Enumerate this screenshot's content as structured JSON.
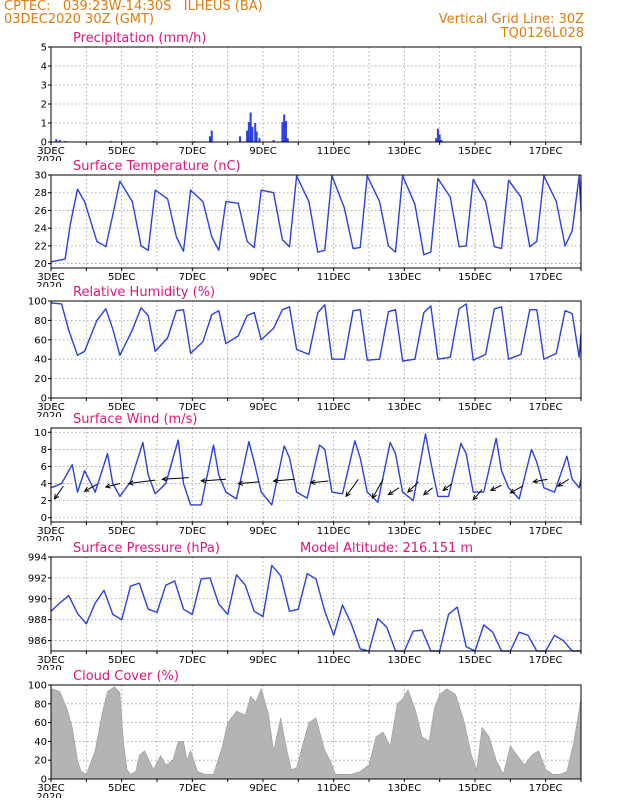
{
  "header": {
    "line1": "CPTEC:   039:23W-14:30S   ILHEUS (BA)",
    "line2": "03DEC2020 30Z (GMT)",
    "right1": "Vertical Grid Line: 30Z",
    "right2": "TQ0126L028"
  },
  "colors": {
    "header": "#e07b10",
    "title": "#e0157a",
    "series": "#2a41e0",
    "cloud": "#b4b4b4"
  },
  "x_axis": {
    "start_day": 3,
    "end_day": 18,
    "tick_days": [
      3,
      5,
      7,
      9,
      11,
      13,
      15,
      17
    ],
    "tick_labels": [
      "3DEC",
      "5DEC",
      "7DEC",
      "9DEC",
      "11DEC",
      "13DEC",
      "15DEC",
      "17DEC"
    ],
    "year_label": "2020"
  },
  "chart_data": [
    {
      "name": "precip",
      "type": "bar",
      "title": "Precipitation (mm/h)",
      "ylim": [
        0,
        5
      ],
      "yticks": [
        0,
        1,
        2,
        3,
        4,
        5
      ],
      "x": [
        3.15,
        3.25,
        3.4,
        4.7,
        5.9,
        7.05,
        7.5,
        7.55,
        8.35,
        8.55,
        8.6,
        8.65,
        8.7,
        8.78,
        8.82,
        8.9,
        9.3,
        9.55,
        9.6,
        9.65,
        9.7,
        12.0,
        13.9,
        13.95,
        14.0,
        14.05,
        16.0
      ],
      "values": [
        0.15,
        0.1,
        0.05,
        0.05,
        0.05,
        0.05,
        0.3,
        0.6,
        0.3,
        0.6,
        1.05,
        1.55,
        0.8,
        1.0,
        0.55,
        0.2,
        0.1,
        1.05,
        1.45,
        1.1,
        0.2,
        0.05,
        0.2,
        0.7,
        0.4,
        0.1,
        0.05
      ]
    },
    {
      "name": "temp",
      "type": "line",
      "title": "Surface Temperature (nC)",
      "ylim": [
        19.5,
        30
      ],
      "yticks": [
        20,
        22,
        24,
        26,
        28,
        30
      ],
      "x": [
        3.0,
        3.4,
        3.55,
        3.75,
        3.95,
        4.3,
        4.55,
        4.75,
        4.95,
        5.3,
        5.55,
        5.75,
        5.95,
        6.3,
        6.55,
        6.75,
        6.95,
        7.3,
        7.55,
        7.75,
        7.95,
        8.3,
        8.55,
        8.75,
        8.95,
        9.3,
        9.55,
        9.75,
        9.95,
        10.3,
        10.55,
        10.75,
        10.95,
        11.3,
        11.55,
        11.75,
        11.95,
        12.3,
        12.55,
        12.75,
        12.95,
        13.3,
        13.55,
        13.75,
        13.95,
        14.3,
        14.55,
        14.75,
        14.95,
        15.3,
        15.55,
        15.75,
        15.95,
        16.3,
        16.55,
        16.75,
        16.95,
        17.3,
        17.55,
        17.75,
        17.95,
        18.0
      ],
      "y": [
        20.2,
        20.5,
        24.5,
        28.4,
        27.0,
        22.5,
        21.9,
        25.5,
        29.3,
        27.0,
        22.0,
        21.5,
        28.3,
        27.3,
        23.0,
        21.4,
        28.3,
        27.0,
        23.0,
        21.5,
        27.0,
        26.8,
        22.5,
        21.8,
        28.3,
        28.0,
        22.7,
        21.9,
        29.9,
        27.0,
        21.3,
        21.5,
        29.9,
        26.3,
        21.7,
        21.8,
        29.9,
        27.0,
        22.0,
        21.3,
        29.9,
        26.7,
        21.0,
        21.3,
        29.6,
        27.5,
        21.9,
        22.0,
        29.5,
        27.0,
        21.9,
        21.7,
        29.4,
        27.5,
        21.9,
        22.5,
        29.9,
        27.0,
        22.0,
        23.7,
        29.9,
        26.0
      ]
    },
    {
      "name": "rh",
      "type": "line",
      "title": "Relative Humidity (%)",
      "ylim": [
        0,
        100
      ],
      "yticks": [
        0,
        20,
        40,
        60,
        80,
        100
      ],
      "x": [
        3.0,
        3.3,
        3.5,
        3.75,
        3.95,
        4.3,
        4.55,
        4.75,
        4.95,
        5.3,
        5.55,
        5.75,
        5.95,
        6.3,
        6.55,
        6.75,
        6.95,
        7.3,
        7.55,
        7.75,
        7.95,
        8.3,
        8.55,
        8.75,
        8.95,
        9.3,
        9.55,
        9.75,
        9.95,
        10.3,
        10.55,
        10.75,
        10.95,
        11.3,
        11.55,
        11.75,
        11.95,
        12.3,
        12.55,
        12.75,
        12.95,
        13.3,
        13.55,
        13.75,
        13.95,
        14.3,
        14.55,
        14.75,
        14.95,
        15.3,
        15.55,
        15.75,
        15.95,
        16.3,
        16.55,
        16.75,
        16.95,
        17.3,
        17.55,
        17.75,
        17.95,
        18.0
      ],
      "y": [
        98,
        97,
        70,
        44,
        48,
        80,
        92,
        71,
        44,
        70,
        93,
        85,
        48,
        62,
        90,
        91,
        46,
        58,
        86,
        90,
        56,
        64,
        85,
        88,
        60,
        72,
        91,
        94,
        50,
        45,
        88,
        96,
        40,
        40,
        90,
        91,
        39,
        40,
        89,
        91,
        38,
        40,
        88,
        95,
        40,
        42,
        92,
        97,
        39,
        45,
        92,
        94,
        40,
        45,
        91,
        91,
        40,
        46,
        90,
        87,
        42,
        66
      ]
    },
    {
      "name": "wind",
      "type": "line",
      "title": "Surface Wind (m/s)",
      "ylim": [
        -0.5,
        10.5
      ],
      "yticks": [
        0,
        2,
        4,
        6,
        8,
        10
      ],
      "x": [
        3.0,
        3.3,
        3.6,
        3.75,
        3.95,
        4.25,
        4.6,
        4.75,
        4.95,
        5.25,
        5.6,
        5.75,
        5.95,
        6.25,
        6.6,
        6.75,
        6.95,
        7.25,
        7.6,
        7.75,
        7.95,
        8.25,
        8.6,
        8.75,
        8.95,
        9.25,
        9.6,
        9.75,
        9.95,
        10.25,
        10.6,
        10.75,
        10.95,
        11.25,
        11.6,
        11.75,
        11.95,
        12.25,
        12.6,
        12.75,
        12.95,
        13.25,
        13.6,
        13.75,
        13.95,
        14.25,
        14.6,
        14.75,
        14.95,
        15.25,
        15.6,
        15.75,
        15.95,
        16.25,
        16.6,
        16.75,
        16.95,
        17.25,
        17.6,
        17.75,
        17.95,
        18.0
      ],
      "y": [
        3.5,
        4.0,
        6.2,
        3.0,
        5.5,
        3.0,
        7.5,
        4.0,
        2.5,
        4.2,
        8.8,
        5.0,
        2.8,
        4.0,
        9.1,
        4.0,
        1.5,
        1.5,
        8.5,
        5.0,
        3.0,
        2.2,
        8.9,
        6.5,
        3.0,
        1.5,
        8.4,
        7.0,
        3.0,
        2.3,
        8.5,
        8.0,
        3.0,
        2.8,
        9.0,
        7.0,
        3.0,
        1.8,
        8.8,
        7.5,
        3.0,
        2.0,
        9.8,
        6.5,
        2.5,
        2.5,
        8.7,
        7.5,
        3.0,
        3.0,
        9.3,
        5.5,
        3.5,
        2.2,
        8.0,
        6.5,
        3.5,
        3.0,
        7.2,
        4.5,
        3.5,
        4.5
      ],
      "vectors_x": [
        3.35,
        4.3,
        4.95,
        5.95,
        6.9,
        7.95,
        8.9,
        9.9,
        10.85,
        11.7,
        12.4,
        12.85,
        13.4,
        13.8,
        14.35,
        15.2,
        15.75,
        16.35,
        17.05,
        17.65
      ],
      "vectors_y": [
        3.7,
        3.9,
        4.0,
        4.4,
        4.7,
        4.5,
        4.2,
        4.5,
        4.3,
        4.5,
        4.5,
        3.5,
        4.2,
        3.5,
        4.0,
        3.3,
        3.8,
        3.7,
        4.5,
        4.5
      ],
      "vectors_dx": [
        -0.25,
        -0.35,
        -0.4,
        -0.75,
        -0.75,
        -0.7,
        -0.6,
        -0.6,
        -0.5,
        -0.35,
        -0.3,
        -0.3,
        -0.3,
        -0.25,
        -0.25,
        -0.25,
        -0.3,
        -0.35,
        -0.4,
        -0.3
      ],
      "vectors_dy": [
        -1.5,
        -0.8,
        -0.4,
        -0.4,
        -0.2,
        -0.2,
        -0.2,
        -0.2,
        -0.2,
        -2.0,
        -2.2,
        -0.8,
        -1.2,
        -0.8,
        -0.8,
        -1.2,
        -0.6,
        -0.8,
        -0.3,
        -0.8
      ]
    },
    {
      "name": "pres",
      "type": "line",
      "title": "Surface Pressure (hPa)",
      "subtitle": "Model Altitude: 216.151 m",
      "ylim": [
        985,
        994
      ],
      "yticks": [
        986,
        988,
        990,
        992,
        994
      ],
      "x": [
        3.0,
        3.25,
        3.5,
        3.75,
        4.0,
        4.25,
        4.5,
        4.75,
        5.0,
        5.25,
        5.5,
        5.75,
        6.0,
        6.25,
        6.5,
        6.75,
        7.0,
        7.25,
        7.5,
        7.75,
        8.0,
        8.25,
        8.5,
        8.75,
        9.0,
        9.25,
        9.5,
        9.75,
        10.0,
        10.25,
        10.5,
        10.75,
        11.0,
        11.25,
        11.5,
        11.75,
        12.0,
        12.25,
        12.5,
        12.75,
        13.0,
        13.25,
        13.5,
        13.75,
        14.0,
        14.25,
        14.5,
        14.75,
        15.0,
        15.25,
        15.5,
        15.75,
        16.0,
        16.25,
        16.5,
        16.75,
        17.0,
        17.25,
        17.5,
        17.75,
        18.0
      ],
      "y": [
        988.8,
        989.6,
        990.3,
        988.6,
        987.6,
        989.6,
        990.8,
        988.5,
        988.0,
        991.2,
        991.5,
        989.0,
        988.7,
        991.3,
        991.7,
        989.0,
        988.5,
        991.9,
        992.0,
        989.5,
        988.5,
        992.3,
        991.3,
        988.8,
        988.3,
        993.2,
        992.2,
        988.8,
        989.0,
        992.4,
        991.9,
        988.8,
        986.5,
        989.4,
        987.6,
        985.2,
        985.0,
        988.1,
        987.3,
        985.0,
        984.7,
        986.9,
        987.0,
        985.0,
        985.0,
        988.5,
        989.2,
        985.4,
        985.0,
        987.5,
        986.8,
        985.0,
        985.0,
        986.8,
        986.5,
        985.0,
        985.0,
        986.5,
        986.0,
        984.8,
        985.0
      ]
    },
    {
      "name": "cloud",
      "type": "area",
      "title": "Cloud Cover (%)",
      "ylim": [
        0,
        100
      ],
      "yticks": [
        0,
        20,
        40,
        60,
        80,
        100
      ],
      "x": [
        3.0,
        3.1,
        3.25,
        3.45,
        3.6,
        3.75,
        3.85,
        4.0,
        4.25,
        4.45,
        4.6,
        4.8,
        4.95,
        5.05,
        5.15,
        5.25,
        5.4,
        5.5,
        5.65,
        5.9,
        6.1,
        6.25,
        6.45,
        6.6,
        6.75,
        6.85,
        6.95,
        7.15,
        7.35,
        7.6,
        7.85,
        8.0,
        8.25,
        8.5,
        8.65,
        8.8,
        8.95,
        9.15,
        9.3,
        9.5,
        9.65,
        9.8,
        9.95,
        10.15,
        10.3,
        10.5,
        10.75,
        10.9,
        11.05,
        11.25,
        11.5,
        11.75,
        12.0,
        12.2,
        12.4,
        12.6,
        12.8,
        12.95,
        13.1,
        13.3,
        13.5,
        13.7,
        13.85,
        14.0,
        14.2,
        14.45,
        14.7,
        14.9,
        15.05,
        15.2,
        15.4,
        15.6,
        15.8,
        16.0,
        16.2,
        16.4,
        16.6,
        16.8,
        17.0,
        17.2,
        17.4,
        17.6,
        17.8,
        18.0
      ],
      "y": [
        96,
        95,
        93,
        75,
        55,
        20,
        8,
        5,
        30,
        70,
        93,
        98,
        92,
        40,
        10,
        5,
        8,
        25,
        30,
        10,
        25,
        15,
        20,
        40,
        40,
        20,
        30,
        8,
        5,
        5,
        35,
        60,
        72,
        68,
        88,
        82,
        96,
        70,
        30,
        65,
        35,
        10,
        12,
        40,
        60,
        65,
        30,
        20,
        5,
        5,
        5,
        8,
        15,
        45,
        50,
        35,
        80,
        85,
        95,
        75,
        45,
        40,
        75,
        90,
        96,
        90,
        60,
        25,
        10,
        55,
        45,
        20,
        5,
        35,
        25,
        15,
        25,
        30,
        10,
        5,
        5,
        8,
        40,
        85
      ]
    }
  ]
}
